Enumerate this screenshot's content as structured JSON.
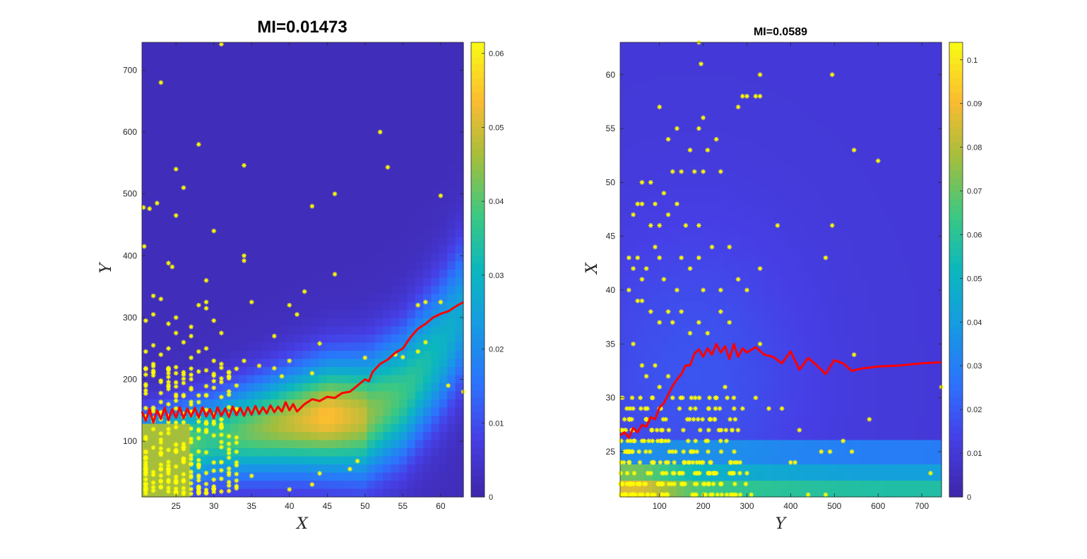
{
  "colors": {
    "background": "#3e26a8",
    "curve": "#ff0000",
    "points": "#ffff00"
  },
  "chart_data": [
    {
      "type": "heatmap",
      "title": "MI=0.01473",
      "xlabel": "X",
      "ylabel": "Y",
      "xlim": [
        20.5,
        63
      ],
      "ylim": [
        10,
        745
      ],
      "xticks": [
        25,
        30,
        35,
        40,
        45,
        50,
        55,
        60
      ],
      "yticks": [
        100,
        200,
        300,
        400,
        500,
        600,
        700
      ],
      "colorbar": {
        "range": [
          0,
          0.0615
        ],
        "ticks": [
          "0",
          "0.01",
          "0.02",
          "0.03",
          "0.04",
          "0.05",
          "0.06"
        ],
        "tickvalues": [
          0,
          0.01,
          0.02,
          0.03,
          0.04,
          0.05,
          0.06
        ]
      },
      "density_ridge": {
        "x": [
          20.5,
          30,
          40,
          45,
          50,
          55,
          60,
          63
        ],
        "y": [
          80,
          105,
          130,
          140,
          140,
          175,
          250,
          310
        ]
      },
      "curve": {
        "x": [
          20.5,
          21,
          21.5,
          22,
          22.5,
          23,
          23.5,
          24,
          24.5,
          25,
          25.5,
          26,
          26.5,
          27,
          27.5,
          28,
          28.5,
          29,
          29.5,
          30,
          30.5,
          31,
          31.5,
          32,
          32.5,
          33,
          33.5,
          34,
          34.5,
          35,
          35.5,
          36,
          36.5,
          37,
          37.5,
          38,
          38.5,
          39,
          39.5,
          40,
          40.5,
          41,
          42,
          43,
          44,
          45,
          46,
          47,
          48,
          49,
          50,
          50.5,
          51,
          52,
          53,
          54,
          55,
          56,
          57,
          58,
          59,
          60,
          61,
          62,
          63
        ],
        "y": [
          148,
          133,
          152,
          130,
          150,
          136,
          154,
          134,
          152,
          138,
          155,
          137,
          153,
          140,
          154,
          138,
          155,
          140,
          152,
          137,
          155,
          141,
          153,
          139,
          156,
          142,
          154,
          141,
          155,
          143,
          157,
          144,
          155,
          145,
          158,
          147,
          156,
          148,
          163,
          150,
          160,
          148,
          160,
          168,
          165,
          172,
          170,
          178,
          180,
          190,
          200,
          197,
          212,
          225,
          232,
          243,
          250,
          268,
          282,
          290,
          300,
          306,
          310,
          318,
          325
        ]
      },
      "points": [
        [
          20.7,
          478
        ],
        [
          20.8,
          415
        ],
        [
          21.5,
          476
        ],
        [
          22.5,
          485
        ],
        [
          23,
          680
        ],
        [
          24.5,
          382
        ],
        [
          24,
          388
        ],
        [
          25,
          540
        ],
        [
          25,
          465
        ],
        [
          26,
          510
        ],
        [
          28,
          580
        ],
        [
          30,
          440
        ],
        [
          31,
          742
        ],
        [
          34,
          546
        ],
        [
          34,
          400
        ],
        [
          34,
          392
        ],
        [
          42,
          342
        ],
        [
          43,
          480
        ],
        [
          46,
          500
        ],
        [
          46,
          370
        ],
        [
          52,
          600
        ],
        [
          53,
          543
        ],
        [
          60,
          497
        ],
        [
          21,
          295
        ],
        [
          22,
          335
        ],
        [
          22,
          305
        ],
        [
          23,
          330
        ],
        [
          24,
          290
        ],
        [
          25,
          300
        ],
        [
          25,
          275
        ],
        [
          27,
          285
        ],
        [
          27,
          270
        ],
        [
          28,
          320
        ],
        [
          29,
          360
        ],
        [
          29,
          325
        ],
        [
          29,
          315
        ],
        [
          30,
          295
        ],
        [
          31,
          275
        ],
        [
          35,
          325
        ],
        [
          38,
          270
        ],
        [
          40,
          320
        ],
        [
          41,
          305
        ],
        [
          44,
          258
        ],
        [
          57,
          245
        ],
        [
          57,
          320
        ],
        [
          58,
          260
        ],
        [
          58,
          325
        ],
        [
          60,
          325
        ],
        [
          21,
          245
        ],
        [
          21,
          218
        ],
        [
          21,
          192
        ],
        [
          22,
          255
        ],
        [
          22,
          225
        ],
        [
          23,
          240
        ],
        [
          24,
          250
        ],
        [
          24,
          215
        ],
        [
          25,
          210
        ],
        [
          26,
          260
        ],
        [
          27,
          235
        ],
        [
          28,
          245
        ],
        [
          29,
          250
        ],
        [
          30,
          230
        ],
        [
          31,
          225
        ],
        [
          32,
          205
        ],
        [
          33,
          190
        ],
        [
          34,
          230
        ],
        [
          36,
          222
        ],
        [
          38,
          218
        ],
        [
          39,
          205
        ],
        [
          40,
          230
        ],
        [
          43,
          210
        ],
        [
          50,
          235
        ],
        [
          54,
          240
        ],
        [
          55,
          236
        ],
        [
          61,
          190
        ],
        [
          63,
          180
        ],
        [
          48,
          55
        ],
        [
          49,
          68
        ],
        [
          44,
          48
        ],
        [
          43,
          30
        ],
        [
          40,
          22
        ],
        [
          35,
          44
        ],
        [
          30,
          24
        ],
        [
          25,
          18
        ],
        [
          22,
          20
        ],
        [
          21,
          30
        ]
      ],
      "cluster": {
        "x": [
          20.5,
          33
        ],
        "y": [
          15,
          225
        ],
        "count": 280
      }
    },
    {
      "type": "heatmap",
      "title": "MI=0.0589",
      "xlabel": "Y",
      "ylabel": "X",
      "xlim": [
        10,
        745
      ],
      "ylim": [
        20.8,
        63
      ],
      "xticks": [
        100,
        200,
        300,
        400,
        500,
        600,
        700
      ],
      "yticks": [
        25,
        30,
        35,
        40,
        45,
        50,
        55,
        60
      ],
      "colorbar": {
        "range": [
          0,
          0.104
        ],
        "ticks": [
          "0",
          "0.01",
          "0.02",
          "0.03",
          "0.04",
          "0.05",
          "0.06",
          "0.07",
          "0.08",
          "0.09",
          "0.1"
        ],
        "tickvalues": [
          0,
          0.01,
          0.02,
          0.03,
          0.04,
          0.05,
          0.06,
          0.07,
          0.08,
          0.09,
          0.1
        ]
      },
      "curve": {
        "x": [
          10,
          20,
          30,
          40,
          50,
          60,
          70,
          80,
          90,
          100,
          110,
          120,
          130,
          140,
          150,
          160,
          170,
          180,
          190,
          200,
          210,
          220,
          230,
          240,
          250,
          260,
          270,
          280,
          290,
          300,
          320,
          340,
          360,
          380,
          400,
          420,
          440,
          460,
          480,
          500,
          520,
          540,
          560,
          600,
          650,
          700,
          745
        ],
        "y": [
          26.5,
          26.8,
          26.3,
          27.2,
          26.8,
          27.5,
          27.3,
          28.2,
          28.0,
          29.1,
          29.5,
          30.3,
          31.1,
          31.7,
          32.2,
          33.0,
          33.0,
          34.1,
          34.5,
          33.8,
          34.6,
          34.0,
          35.0,
          34.2,
          34.8,
          33.6,
          35.0,
          33.8,
          34.6,
          34.2,
          34.7,
          34.0,
          33.8,
          33.2,
          34.3,
          32.6,
          33.7,
          33.0,
          32.2,
          33.5,
          33.2,
          32.5,
          32.7,
          32.9,
          33.0,
          33.2,
          33.3
        ]
      },
      "points": [
        [
          190,
          63
        ],
        [
          195,
          61
        ],
        [
          330,
          60
        ],
        [
          495,
          60
        ],
        [
          100,
          57
        ],
        [
          200,
          56
        ],
        [
          120,
          54
        ],
        [
          140,
          55
        ],
        [
          170,
          53
        ],
        [
          190,
          55
        ],
        [
          210,
          53
        ],
        [
          230,
          54
        ],
        [
          300,
          58
        ],
        [
          320,
          58
        ],
        [
          280,
          57
        ],
        [
          330,
          58
        ],
        [
          290,
          58
        ],
        [
          545,
          53
        ],
        [
          600,
          52
        ],
        [
          60,
          50
        ],
        [
          80,
          50
        ],
        [
          90,
          48
        ],
        [
          110,
          49
        ],
        [
          130,
          51
        ],
        [
          150,
          51
        ],
        [
          180,
          51
        ],
        [
          200,
          51
        ],
        [
          240,
          51
        ],
        [
          40,
          47
        ],
        [
          50,
          48
        ],
        [
          60,
          48
        ],
        [
          80,
          46
        ],
        [
          100,
          46
        ],
        [
          120,
          47
        ],
        [
          140,
          48
        ],
        [
          160,
          46
        ],
        [
          190,
          46
        ],
        [
          370,
          46
        ],
        [
          495,
          46
        ],
        [
          30,
          43
        ],
        [
          40,
          42
        ],
        [
          50,
          43
        ],
        [
          60,
          41
        ],
        [
          70,
          42
        ],
        [
          90,
          44
        ],
        [
          100,
          43
        ],
        [
          110,
          41
        ],
        [
          140,
          40
        ],
        [
          150,
          43
        ],
        [
          170,
          42
        ],
        [
          190,
          43
        ],
        [
          200,
          40
        ],
        [
          220,
          44
        ],
        [
          260,
          44
        ],
        [
          330,
          42
        ],
        [
          480,
          43
        ],
        [
          280,
          41
        ],
        [
          300,
          40
        ],
        [
          30,
          40
        ],
        [
          50,
          39
        ],
        [
          60,
          39
        ],
        [
          80,
          38
        ],
        [
          100,
          37
        ],
        [
          120,
          38
        ],
        [
          130,
          37
        ],
        [
          150,
          38
        ],
        [
          170,
          36
        ],
        [
          190,
          37
        ],
        [
          210,
          36
        ],
        [
          240,
          38
        ],
        [
          260,
          37
        ],
        [
          240,
          40
        ],
        [
          330,
          35
        ],
        [
          545,
          34
        ],
        [
          40,
          35
        ],
        [
          60,
          33
        ],
        [
          70,
          32
        ],
        [
          90,
          33
        ],
        [
          100,
          31
        ],
        [
          120,
          32
        ],
        [
          130,
          30
        ],
        [
          250,
          31
        ],
        [
          270,
          30
        ],
        [
          290,
          29
        ],
        [
          320,
          30
        ],
        [
          350,
          29
        ],
        [
          380,
          29
        ],
        [
          420,
          27
        ],
        [
          490,
          25
        ],
        [
          520,
          26
        ],
        [
          580,
          28
        ],
        [
          720,
          23
        ],
        [
          745,
          31
        ],
        [
          400,
          24
        ],
        [
          410,
          24
        ],
        [
          300,
          23
        ],
        [
          310,
          21
        ],
        [
          470,
          25
        ],
        [
          540,
          25
        ],
        [
          440,
          21
        ],
        [
          480,
          21
        ]
      ],
      "cluster": {
        "x": [
          10,
          300
        ],
        "y": [
          21,
          30
        ],
        "count": 260
      }
    }
  ]
}
